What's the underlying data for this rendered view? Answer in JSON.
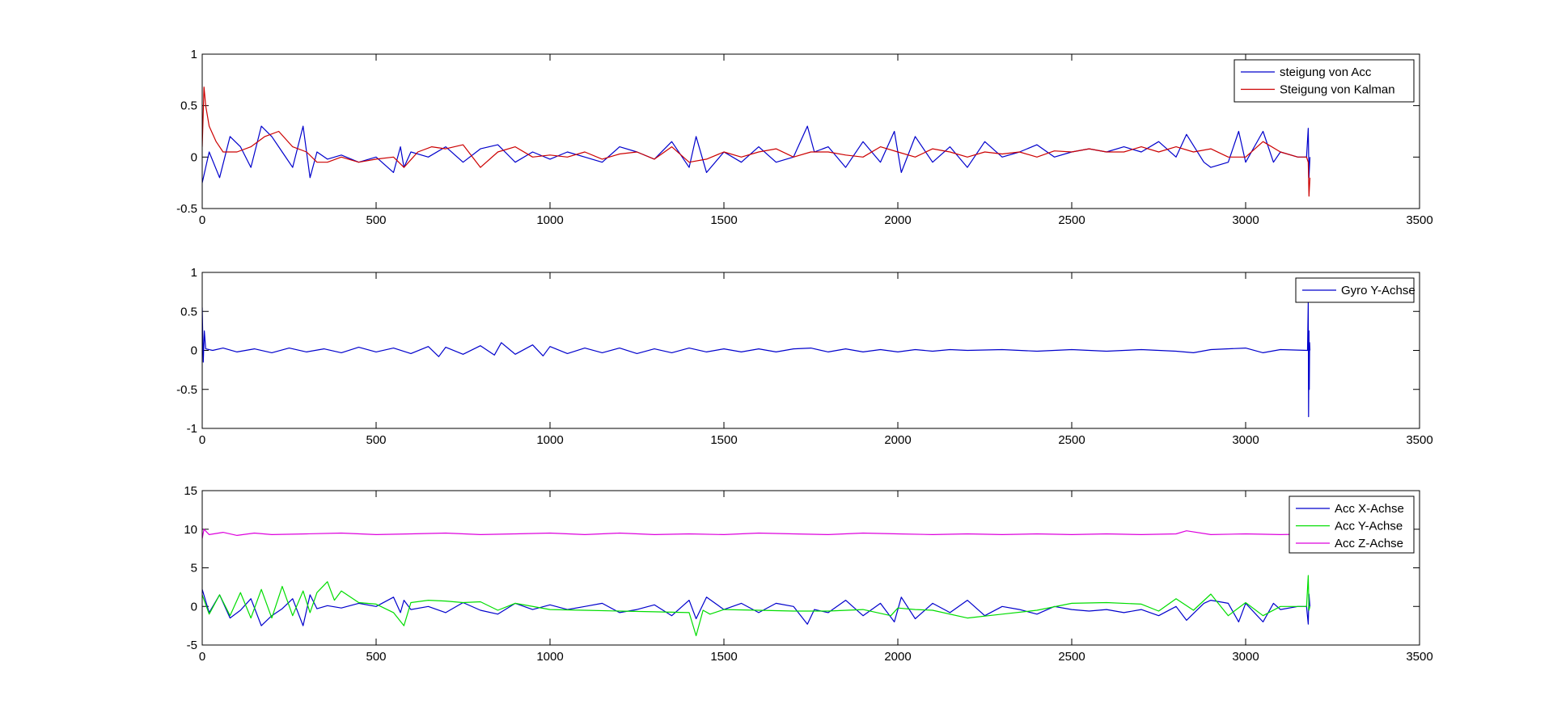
{
  "chart_data": [
    {
      "type": "line",
      "title": "",
      "xlabel": "",
      "ylabel": "",
      "xlim": [
        0,
        3500
      ],
      "ylim": [
        -0.5,
        1
      ],
      "xticks": [
        0,
        500,
        1000,
        1500,
        2000,
        2500,
        3000,
        3500
      ],
      "yticks": [
        -0.5,
        0,
        0.5,
        1
      ],
      "xtick_labels": [
        "0",
        "500",
        "1000",
        "1500",
        "2000",
        "2500",
        "3000",
        "3500"
      ],
      "ytick_labels": [
        "-0.5",
        "0",
        "0.5",
        "1"
      ],
      "grid": false,
      "legend_position": "top-right",
      "series": [
        {
          "name": "steigung von Acc",
          "color": "#0000cc",
          "x": [
            0,
            20,
            50,
            80,
            110,
            140,
            170,
            200,
            230,
            260,
            290,
            310,
            330,
            360,
            400,
            450,
            500,
            550,
            570,
            580,
            600,
            650,
            700,
            750,
            800,
            850,
            900,
            950,
            1000,
            1050,
            1100,
            1150,
            1200,
            1250,
            1300,
            1350,
            1400,
            1420,
            1450,
            1500,
            1550,
            1600,
            1650,
            1700,
            1740,
            1760,
            1800,
            1850,
            1900,
            1950,
            1990,
            2010,
            2050,
            2100,
            2150,
            2200,
            2250,
            2300,
            2350,
            2400,
            2450,
            2500,
            2550,
            2600,
            2650,
            2700,
            2750,
            2800,
            2830,
            2880,
            2900,
            2950,
            2980,
            3000,
            3050,
            3080,
            3100,
            3150,
            3175,
            3180,
            3182,
            3185
          ],
          "y": [
            -0.25,
            0.05,
            -0.2,
            0.2,
            0.1,
            -0.1,
            0.3,
            0.2,
            0.05,
            -0.1,
            0.3,
            -0.2,
            0.05,
            -0.02,
            0.02,
            -0.05,
            0.0,
            -0.15,
            0.1,
            -0.1,
            0.05,
            0.0,
            0.1,
            -0.05,
            0.08,
            0.12,
            -0.05,
            0.05,
            -0.02,
            0.05,
            0.0,
            -0.05,
            0.1,
            0.05,
            -0.02,
            0.15,
            -0.1,
            0.2,
            -0.15,
            0.05,
            -0.05,
            0.1,
            -0.05,
            0.0,
            0.3,
            0.05,
            0.1,
            -0.1,
            0.15,
            -0.05,
            0.25,
            -0.15,
            0.2,
            -0.05,
            0.1,
            -0.1,
            0.15,
            0.0,
            0.05,
            0.12,
            0.0,
            0.05,
            0.08,
            0.05,
            0.1,
            0.05,
            0.15,
            0.0,
            0.22,
            -0.05,
            -0.1,
            -0.05,
            0.25,
            -0.05,
            0.25,
            -0.05,
            0.05,
            0.0,
            0.0,
            0.28,
            -0.2,
            0.0
          ]
        },
        {
          "name": "Steigung von Kalman",
          "color": "#cc0000",
          "x": [
            0,
            5,
            10,
            20,
            40,
            60,
            100,
            140,
            180,
            220,
            260,
            300,
            330,
            360,
            400,
            450,
            500,
            550,
            580,
            620,
            660,
            700,
            750,
            800,
            850,
            900,
            950,
            1000,
            1050,
            1100,
            1150,
            1200,
            1250,
            1300,
            1350,
            1400,
            1450,
            1500,
            1550,
            1600,
            1650,
            1700,
            1750,
            1800,
            1850,
            1900,
            1950,
            2000,
            2050,
            2100,
            2150,
            2200,
            2250,
            2300,
            2350,
            2400,
            2450,
            2500,
            2550,
            2600,
            2650,
            2700,
            2750,
            2800,
            2850,
            2900,
            2950,
            3000,
            3050,
            3100,
            3150,
            3175,
            3180,
            3182,
            3185
          ],
          "y": [
            0.1,
            0.68,
            0.5,
            0.3,
            0.15,
            0.05,
            0.05,
            0.1,
            0.2,
            0.25,
            0.1,
            0.05,
            -0.05,
            -0.05,
            0.0,
            -0.05,
            -0.02,
            0.0,
            -0.1,
            0.05,
            0.1,
            0.08,
            0.12,
            -0.1,
            0.05,
            0.1,
            0.0,
            0.02,
            0.0,
            0.05,
            -0.02,
            0.03,
            0.05,
            -0.02,
            0.1,
            -0.05,
            -0.02,
            0.05,
            0.0,
            0.05,
            0.08,
            0.0,
            0.05,
            0.05,
            0.02,
            0.0,
            0.1,
            0.05,
            0.0,
            0.08,
            0.05,
            0.0,
            0.05,
            0.03,
            0.05,
            0.0,
            0.06,
            0.05,
            0.08,
            0.05,
            0.05,
            0.1,
            0.05,
            0.1,
            0.05,
            0.08,
            0.0,
            0.0,
            0.15,
            0.05,
            0.0,
            0.0,
            -0.05,
            -0.38,
            -0.2
          ]
        }
      ]
    },
    {
      "type": "line",
      "title": "",
      "xlabel": "",
      "ylabel": "",
      "xlim": [
        0,
        3500
      ],
      "ylim": [
        -1,
        1
      ],
      "xticks": [
        0,
        500,
        1000,
        1500,
        2000,
        2500,
        3000,
        3500
      ],
      "yticks": [
        -1,
        -0.5,
        0,
        0.5,
        1
      ],
      "xtick_labels": [
        "0",
        "500",
        "1000",
        "1500",
        "2000",
        "2500",
        "3000",
        "3500"
      ],
      "ytick_labels": [
        "-1",
        "-0.5",
        "0",
        "0.5",
        "1"
      ],
      "grid": false,
      "legend_position": "top-right",
      "series": [
        {
          "name": "Gyro Y-Achse",
          "color": "#0000cc",
          "x": [
            0,
            3,
            6,
            10,
            30,
            60,
            100,
            150,
            200,
            250,
            300,
            350,
            400,
            450,
            500,
            550,
            600,
            650,
            680,
            700,
            750,
            800,
            840,
            860,
            900,
            950,
            980,
            1000,
            1050,
            1100,
            1150,
            1200,
            1250,
            1300,
            1350,
            1400,
            1450,
            1500,
            1550,
            1600,
            1650,
            1700,
            1750,
            1800,
            1850,
            1900,
            1950,
            2000,
            2050,
            2100,
            2150,
            2200,
            2300,
            2400,
            2500,
            2600,
            2700,
            2800,
            2850,
            2900,
            3000,
            3050,
            3100,
            3178,
            3180,
            3181,
            3182,
            3183,
            3184,
            3185
          ],
          "y": [
            0.55,
            -0.15,
            0.25,
            0.02,
            0.0,
            0.03,
            -0.02,
            0.02,
            -0.03,
            0.03,
            -0.02,
            0.02,
            -0.03,
            0.04,
            -0.02,
            0.03,
            -0.04,
            0.05,
            -0.08,
            0.04,
            -0.05,
            0.06,
            -0.06,
            0.1,
            -0.05,
            0.07,
            -0.07,
            0.05,
            -0.04,
            0.03,
            -0.03,
            0.03,
            -0.04,
            0.02,
            -0.03,
            0.03,
            -0.02,
            0.02,
            -0.02,
            0.02,
            -0.02,
            0.02,
            0.03,
            -0.02,
            0.02,
            -0.02,
            0.01,
            -0.02,
            0.01,
            -0.01,
            0.01,
            0.0,
            0.01,
            -0.01,
            0.01,
            -0.01,
            0.01,
            -0.01,
            -0.03,
            0.01,
            0.03,
            -0.03,
            0.01,
            0.0,
            0.62,
            -0.85,
            0.25,
            -0.5,
            0.1,
            0.0
          ]
        }
      ]
    },
    {
      "type": "line",
      "title": "",
      "xlabel": "",
      "ylabel": "",
      "xlim": [
        0,
        3500
      ],
      "ylim": [
        -5,
        15
      ],
      "xticks": [
        0,
        500,
        1000,
        1500,
        2000,
        2500,
        3000,
        3500
      ],
      "yticks": [
        -5,
        0,
        5,
        10,
        15
      ],
      "xtick_labels": [
        "0",
        "500",
        "1000",
        "1500",
        "2000",
        "2500",
        "3000",
        "3500"
      ],
      "ytick_labels": [
        "-5",
        "0",
        "5",
        "10",
        "15"
      ],
      "grid": false,
      "legend_position": "top-right",
      "series": [
        {
          "name": "Acc X-Achse",
          "color": "#0000cc",
          "x": [
            0,
            20,
            50,
            80,
            110,
            140,
            170,
            200,
            230,
            260,
            290,
            310,
            330,
            360,
            400,
            450,
            500,
            550,
            570,
            580,
            600,
            650,
            700,
            750,
            800,
            850,
            900,
            950,
            1000,
            1050,
            1100,
            1150,
            1200,
            1250,
            1300,
            1350,
            1400,
            1420,
            1450,
            1500,
            1550,
            1600,
            1650,
            1700,
            1740,
            1760,
            1800,
            1850,
            1900,
            1950,
            1990,
            2010,
            2050,
            2100,
            2150,
            2200,
            2250,
            2300,
            2350,
            2400,
            2450,
            2500,
            2550,
            2600,
            2650,
            2700,
            2750,
            2800,
            2830,
            2880,
            2900,
            2950,
            2980,
            3000,
            3050,
            3080,
            3100,
            3150,
            3175,
            3180,
            3182,
            3185
          ],
          "y": [
            2.2,
            -0.8,
            1.5,
            -1.5,
            -0.5,
            1.0,
            -2.5,
            -1.2,
            -0.3,
            1.0,
            -2.5,
            1.5,
            -0.3,
            0.1,
            -0.2,
            0.4,
            0.0,
            1.2,
            -0.8,
            0.8,
            -0.4,
            0.0,
            -0.8,
            0.5,
            -0.5,
            -1.0,
            0.4,
            -0.4,
            0.2,
            -0.4,
            0.0,
            0.4,
            -0.8,
            -0.4,
            0.2,
            -1.2,
            0.8,
            -1.6,
            1.2,
            -0.4,
            0.4,
            -0.8,
            0.4,
            0.0,
            -2.3,
            -0.4,
            -0.8,
            0.8,
            -1.2,
            0.4,
            -2.0,
            1.2,
            -1.6,
            0.4,
            -0.8,
            0.8,
            -1.2,
            0.0,
            -0.4,
            -1.0,
            0.0,
            -0.4,
            -0.6,
            -0.4,
            -0.8,
            -0.4,
            -1.2,
            0.0,
            -1.8,
            0.4,
            0.8,
            0.4,
            -2.0,
            0.4,
            -2.0,
            0.4,
            -0.4,
            0.0,
            0.0,
            -2.3,
            1.6,
            0.0
          ]
        },
        {
          "name": "Acc Y-Achse",
          "color": "#00dd00",
          "x": [
            0,
            20,
            50,
            80,
            110,
            140,
            170,
            200,
            230,
            260,
            290,
            310,
            330,
            360,
            380,
            400,
            450,
            500,
            550,
            580,
            600,
            650,
            700,
            750,
            800,
            850,
            900,
            1000,
            1100,
            1200,
            1300,
            1400,
            1420,
            1440,
            1460,
            1500,
            1600,
            1700,
            1800,
            1900,
            1980,
            2000,
            2050,
            2100,
            2200,
            2300,
            2400,
            2500,
            2600,
            2700,
            2750,
            2800,
            2850,
            2900,
            2950,
            3000,
            3050,
            3100,
            3150,
            3175,
            3180,
            3182,
            3185
          ],
          "y": [
            1.5,
            -1.0,
            1.5,
            -1.2,
            1.8,
            -1.5,
            2.2,
            -1.5,
            2.6,
            -1.2,
            2.0,
            -0.8,
            1.8,
            3.2,
            0.8,
            2.0,
            0.5,
            0.3,
            -0.8,
            -2.5,
            0.5,
            0.8,
            0.7,
            0.5,
            0.6,
            -0.5,
            0.4,
            -0.4,
            -0.5,
            -0.6,
            -0.7,
            -0.8,
            -3.8,
            -0.5,
            -1.0,
            -0.4,
            -0.5,
            -0.6,
            -0.6,
            -0.4,
            -1.2,
            -0.2,
            -0.4,
            -0.5,
            -1.5,
            -1.0,
            -0.5,
            0.4,
            0.5,
            0.3,
            -0.6,
            1.0,
            -0.5,
            1.6,
            -1.2,
            0.5,
            -1.2,
            0.0,
            0.0,
            0.0,
            4.0,
            -0.5,
            0.0
          ]
        },
        {
          "name": "Acc Z-Achse",
          "color": "#dd00dd",
          "x": [
            0,
            5,
            20,
            60,
            100,
            150,
            200,
            300,
            400,
            500,
            600,
            700,
            800,
            900,
            1000,
            1100,
            1200,
            1300,
            1400,
            1500,
            1600,
            1700,
            1800,
            1900,
            2000,
            2100,
            2200,
            2300,
            2400,
            2500,
            2600,
            2700,
            2800,
            2830,
            2900,
            3000,
            3100,
            3150,
            3175
          ],
          "y": [
            8.8,
            10.0,
            9.3,
            9.6,
            9.2,
            9.5,
            9.3,
            9.4,
            9.5,
            9.3,
            9.4,
            9.5,
            9.3,
            9.4,
            9.5,
            9.3,
            9.5,
            9.3,
            9.4,
            9.3,
            9.5,
            9.4,
            9.3,
            9.5,
            9.4,
            9.3,
            9.4,
            9.3,
            9.4,
            9.3,
            9.4,
            9.3,
            9.4,
            9.8,
            9.3,
            9.4,
            9.3,
            9.35,
            9.3
          ]
        }
      ]
    }
  ]
}
